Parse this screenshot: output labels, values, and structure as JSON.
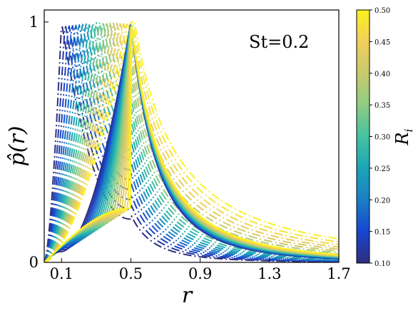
{
  "chart_data": {
    "type": "line",
    "title": "",
    "xlabel": "r",
    "ylabel": "p̂(r)",
    "xlim": [
      0.0,
      1.7
    ],
    "ylim": [
      0,
      1.05
    ],
    "x_ticks": [
      0.1,
      0.5,
      0.9,
      1.3,
      1.7
    ],
    "x_tick_labels": [
      "0.1",
      "0.5",
      "0.9",
      "1.3",
      "1.7"
    ],
    "y_ticks": [
      0,
      1
    ],
    "y_tick_labels": [
      "0",
      "1"
    ],
    "annotation": "St=0.2",
    "legend": "none",
    "grid": false,
    "colorbar": {
      "label": "R_i",
      "label_main": "R",
      "label_sub": "i",
      "min": 0.1,
      "max": 0.5,
      "ticks": [
        "0.10",
        "0.15",
        "0.20",
        "0.25",
        "0.30",
        "0.35",
        "0.40",
        "0.45",
        "0.50"
      ],
      "colormap": [
        "#2f2e7e",
        "#1746d0",
        "#1a7fc4",
        "#1aa5b6",
        "#46c2a0",
        "#8fcc83",
        "#c9c96d",
        "#f0cf5a",
        "#fbf21f"
      ]
    },
    "series_groups": [
      {
        "style": "dash-dot",
        "description_of_rule": "peak at r = R_i with value 1",
        "R_i_values": [
          0.1,
          0.12,
          0.14,
          0.16,
          0.18,
          0.2,
          0.22,
          0.24,
          0.26,
          0.28,
          0.3,
          0.32,
          0.34,
          0.36,
          0.38,
          0.4,
          0.42,
          0.44,
          0.46,
          0.48,
          0.5
        ],
        "values_at_r": [
          0.0,
          0.1,
          0.2,
          0.3,
          0.4,
          0.5,
          0.9,
          1.3,
          1.7
        ]
      },
      {
        "style": "solid",
        "description_of_rule": "peak at r = 0.5 with value 1",
        "R_i_values": [
          0.1,
          0.12,
          0.14,
          0.16,
          0.18,
          0.2,
          0.22,
          0.24,
          0.26,
          0.28,
          0.3,
          0.32,
          0.34,
          0.36,
          0.38,
          0.4,
          0.42,
          0.44,
          0.46,
          0.48,
          0.5
        ]
      }
    ]
  }
}
